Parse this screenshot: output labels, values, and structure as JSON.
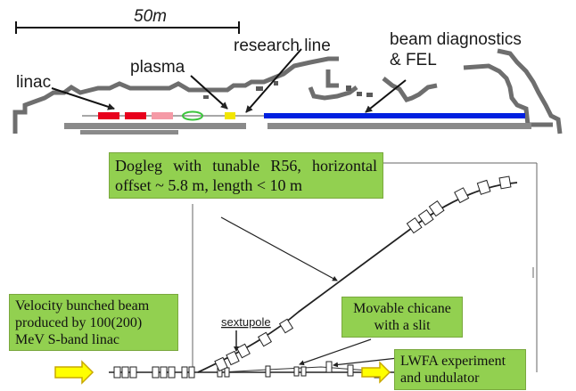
{
  "top_map": {
    "scale_label": "50m",
    "labels": {
      "research_line": "research line",
      "beam_diagnostics_line1": "beam diagnostics",
      "beam_diagnostics_line2": "& FEL",
      "plasma": "plasma",
      "linac": "linac"
    },
    "colors": {
      "linac": "#e8001c",
      "linac_light": "#f59aa6",
      "plasma_ring": "#3cc43c",
      "plasma": "#f2e600",
      "beamline": "#0020e0",
      "wall": "#707070"
    }
  },
  "annotations": {
    "dogleg": "Dogleg with tunable R56, horizontal offset ~ 5.8 m, length < 10 m",
    "velocity_line1": "Velocity bunched beam",
    "velocity_line2": "produced by 100(200)",
    "velocity_line3": "MeV S-band linac",
    "chicane_line1": "Movable chicane",
    "chicane_line2": "with a slit",
    "lwfa_line1": "LWFA experiment",
    "lwfa_line2": "and undulator",
    "sextupole": "sextupole"
  },
  "colors": {
    "annotation_box": "#92d050",
    "arrow_fill": "#ffff00",
    "arrow_stroke": "#c8a800"
  }
}
